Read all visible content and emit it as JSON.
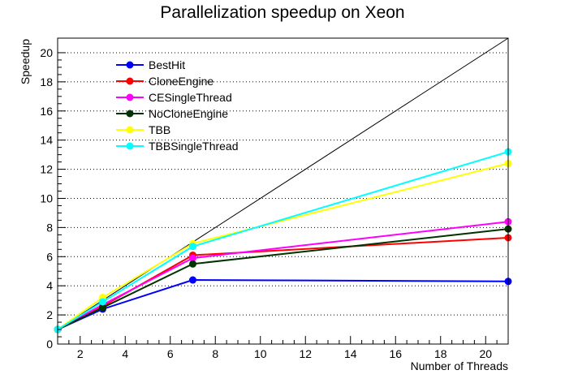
{
  "chart_data": {
    "type": "line",
    "title": "Parallelization speedup on Xeon",
    "xlabel": "Number of Threads",
    "ylabel": "Speedup",
    "xlim": [
      1,
      21
    ],
    "ylim": [
      0,
      21
    ],
    "x_ticks": [
      2,
      4,
      6,
      8,
      10,
      12,
      14,
      16,
      18,
      20
    ],
    "y_ticks": [
      0,
      2,
      4,
      6,
      8,
      10,
      12,
      14,
      16,
      18,
      20
    ],
    "grid": "horizontal dotted",
    "legend_position": "top-left",
    "ideal_line": {
      "x": [
        1,
        21
      ],
      "y": [
        1,
        21
      ],
      "color": "#000000"
    },
    "x": [
      1,
      3,
      7,
      21
    ],
    "series": [
      {
        "name": "BestHit",
        "color": "#0000ff",
        "values": [
          1,
          2.4,
          4.4,
          4.3
        ]
      },
      {
        "name": "CloneEngine",
        "color": "#ff0000",
        "values": [
          1,
          2.6,
          6.1,
          7.3
        ]
      },
      {
        "name": "CESingleThread",
        "color": "#ff00ff",
        "values": [
          1,
          2.7,
          5.9,
          8.4
        ]
      },
      {
        "name": "NoCloneEngine",
        "color": "#003300",
        "values": [
          1,
          2.5,
          5.5,
          7.9
        ]
      },
      {
        "name": "TBB",
        "color": "#ffff00",
        "values": [
          1,
          3.2,
          6.9,
          12.4
        ]
      },
      {
        "name": "TBBSingleThread",
        "color": "#00ffff",
        "values": [
          1,
          2.9,
          6.7,
          13.2
        ]
      }
    ]
  }
}
